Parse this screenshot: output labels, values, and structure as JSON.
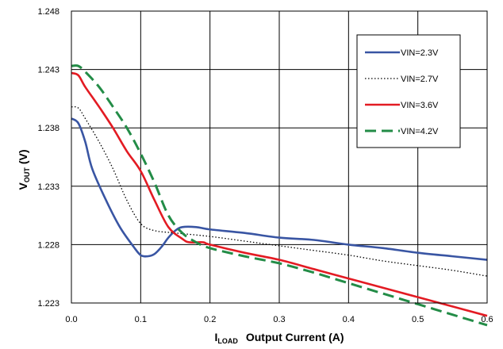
{
  "chart_data": {
    "type": "line",
    "xlabel": {
      "main": "I",
      "sub": "LOAD",
      "rest": "Output Current (A)"
    },
    "ylabel": {
      "main": "V",
      "sub": "OUT",
      "rest": "(V)"
    },
    "xlim": [
      0,
      0.6
    ],
    "ylim": [
      1.223,
      1.248
    ],
    "xticks": [
      0.0,
      0.1,
      0.2,
      0.3,
      0.4,
      0.5,
      0.6
    ],
    "xtick_labels": [
      "0.0",
      "0.1",
      "0.2",
      "0.3",
      "0.4",
      "0.5",
      "0.6"
    ],
    "yticks": [
      1.223,
      1.228,
      1.233,
      1.238,
      1.243,
      1.248
    ],
    "ytick_labels": [
      "1.223",
      "1.228",
      "1.233",
      "1.238",
      "1.243",
      "1.248"
    ],
    "grid": true,
    "legend_position": "top-right",
    "series": [
      {
        "name": "VIN=2.3V",
        "color": "#3955a3",
        "style": "solid",
        "points": [
          [
            0.0,
            1.2388
          ],
          [
            0.01,
            1.2384
          ],
          [
            0.02,
            1.2368
          ],
          [
            0.03,
            1.2345
          ],
          [
            0.05,
            1.2318
          ],
          [
            0.07,
            1.2295
          ],
          [
            0.09,
            1.2278
          ],
          [
            0.1,
            1.2271
          ],
          [
            0.11,
            1.227
          ],
          [
            0.12,
            1.2272
          ],
          [
            0.13,
            1.2278
          ],
          [
            0.14,
            1.2286
          ],
          [
            0.15,
            1.2292
          ],
          [
            0.16,
            1.2295
          ],
          [
            0.18,
            1.2295
          ],
          [
            0.2,
            1.2293
          ],
          [
            0.25,
            1.229
          ],
          [
            0.3,
            1.2286
          ],
          [
            0.35,
            1.2284
          ],
          [
            0.4,
            1.228
          ],
          [
            0.45,
            1.2277
          ],
          [
            0.5,
            1.2273
          ],
          [
            0.55,
            1.227
          ],
          [
            0.6,
            1.2267
          ]
        ]
      },
      {
        "name": "VIN=2.7V",
        "color": "#000000",
        "style": "dotted",
        "points": [
          [
            0.0,
            1.2398
          ],
          [
            0.01,
            1.2397
          ],
          [
            0.02,
            1.2388
          ],
          [
            0.04,
            1.2368
          ],
          [
            0.06,
            1.2345
          ],
          [
            0.08,
            1.2318
          ],
          [
            0.1,
            1.2298
          ],
          [
            0.12,
            1.2292
          ],
          [
            0.15,
            1.229
          ],
          [
            0.2,
            1.2287
          ],
          [
            0.25,
            1.2283
          ],
          [
            0.3,
            1.2279
          ],
          [
            0.35,
            1.2275
          ],
          [
            0.4,
            1.2271
          ],
          [
            0.45,
            1.2266
          ],
          [
            0.5,
            1.2262
          ],
          [
            0.55,
            1.2258
          ],
          [
            0.6,
            1.2253
          ]
        ]
      },
      {
        "name": "VIN=3.6V",
        "color": "#e31b23",
        "style": "solid",
        "points": [
          [
            0.0,
            1.2427
          ],
          [
            0.01,
            1.2425
          ],
          [
            0.02,
            1.2415
          ],
          [
            0.04,
            1.2398
          ],
          [
            0.06,
            1.238
          ],
          [
            0.08,
            1.236
          ],
          [
            0.1,
            1.2343
          ],
          [
            0.12,
            1.2318
          ],
          [
            0.14,
            1.2295
          ],
          [
            0.16,
            1.2285
          ],
          [
            0.17,
            1.2282
          ],
          [
            0.19,
            1.2282
          ],
          [
            0.2,
            1.228
          ],
          [
            0.25,
            1.2273
          ],
          [
            0.3,
            1.2267
          ],
          [
            0.35,
            1.2259
          ],
          [
            0.4,
            1.2251
          ],
          [
            0.45,
            1.2243
          ],
          [
            0.5,
            1.2235
          ],
          [
            0.55,
            1.2227
          ],
          [
            0.6,
            1.2219
          ]
        ]
      },
      {
        "name": "VIN=4.2V",
        "color": "#238c47",
        "style": "dashed",
        "points": [
          [
            0.0,
            1.2433
          ],
          [
            0.01,
            1.2433
          ],
          [
            0.02,
            1.2428
          ],
          [
            0.04,
            1.2415
          ],
          [
            0.06,
            1.2398
          ],
          [
            0.08,
            1.238
          ],
          [
            0.1,
            1.2358
          ],
          [
            0.12,
            1.2333
          ],
          [
            0.14,
            1.2305
          ],
          [
            0.16,
            1.229
          ],
          [
            0.18,
            1.2282
          ],
          [
            0.2,
            1.2277
          ],
          [
            0.25,
            1.227
          ],
          [
            0.3,
            1.2264
          ],
          [
            0.35,
            1.2256
          ],
          [
            0.4,
            1.2247
          ],
          [
            0.45,
            1.2238
          ],
          [
            0.5,
            1.2229
          ],
          [
            0.55,
            1.222
          ],
          [
            0.6,
            1.2211
          ]
        ]
      }
    ]
  }
}
